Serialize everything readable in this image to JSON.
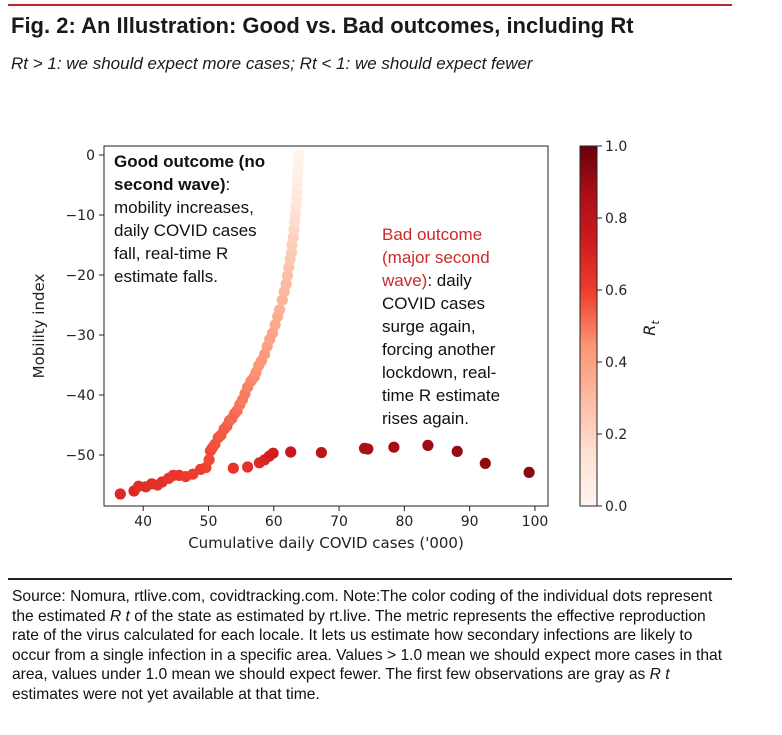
{
  "header": {
    "title": "Fig. 2: An Illustration: Good vs. Bad outcomes, including Rt",
    "subtitle": "Rt > 1: we should expect more cases; Rt < 1: we should expect fewer"
  },
  "chart_data": {
    "type": "scatter",
    "xlabel": "Cumulative daily COVID cases ('000)",
    "ylabel": "Mobility index",
    "xlim": [
      34,
      102
    ],
    "ylim": [
      -58.5,
      1.5
    ],
    "x_ticks": [
      40,
      50,
      60,
      70,
      80,
      90,
      100
    ],
    "y_ticks": [
      0,
      -10,
      -20,
      -30,
      -40,
      -50
    ],
    "grid": false,
    "colorbar": {
      "label": "R_t",
      "range": [
        0.0,
        1.0
      ],
      "ticks": [
        1.0,
        0.8,
        0.6,
        0.4,
        0.2,
        0.0
      ],
      "color_low": "#fff5f0",
      "color_high": "#67000d"
    },
    "series": [
      {
        "points": [
          {
            "x": 36.5,
            "y": -56.5,
            "c": 0.68
          },
          {
            "x": 38.6,
            "y": -56.0,
            "c": 0.68
          },
          {
            "x": 39.3,
            "y": -55.2,
            "c": 0.66
          },
          {
            "x": 40.4,
            "y": -55.3,
            "c": 0.66
          },
          {
            "x": 41.3,
            "y": -54.8,
            "c": 0.65
          },
          {
            "x": 42.2,
            "y": -55.0,
            "c": 0.64
          },
          {
            "x": 42.9,
            "y": -54.5,
            "c": 0.64
          },
          {
            "x": 43.9,
            "y": -53.9,
            "c": 0.63
          },
          {
            "x": 44.6,
            "y": -53.4,
            "c": 0.62
          },
          {
            "x": 45.5,
            "y": -53.4,
            "c": 0.62
          },
          {
            "x": 46.5,
            "y": -53.6,
            "c": 0.61
          },
          {
            "x": 47.6,
            "y": -53.2,
            "c": 0.6
          },
          {
            "x": 48.8,
            "y": -52.4,
            "c": 0.6
          },
          {
            "x": 49.6,
            "y": -52.1,
            "c": 0.59
          },
          {
            "x": 50.1,
            "y": -50.8,
            "c": 0.58
          },
          {
            "x": 50.3,
            "y": -49.3,
            "c": 0.58
          },
          {
            "x": 50.6,
            "y": -48.8,
            "c": 0.57
          },
          {
            "x": 51.0,
            "y": -48.2,
            "c": 0.56
          },
          {
            "x": 51.5,
            "y": -47.1,
            "c": 0.56
          },
          {
            "x": 51.9,
            "y": -46.7,
            "c": 0.55
          },
          {
            "x": 52.4,
            "y": -45.7,
            "c": 0.55
          },
          {
            "x": 52.8,
            "y": -45.2,
            "c": 0.54
          },
          {
            "x": 53.2,
            "y": -44.3,
            "c": 0.53
          },
          {
            "x": 53.6,
            "y": -43.9,
            "c": 0.52
          },
          {
            "x": 54.0,
            "y": -43.1,
            "c": 0.52
          },
          {
            "x": 54.4,
            "y": -42.6,
            "c": 0.51
          },
          {
            "x": 54.8,
            "y": -41.6,
            "c": 0.5
          },
          {
            "x": 55.2,
            "y": -40.8,
            "c": 0.49
          },
          {
            "x": 55.6,
            "y": -39.8,
            "c": 0.49
          },
          {
            "x": 56.0,
            "y": -38.7,
            "c": 0.48
          },
          {
            "x": 56.5,
            "y": -37.7,
            "c": 0.47
          },
          {
            "x": 57.0,
            "y": -37.0,
            "c": 0.46
          },
          {
            "x": 57.3,
            "y": -36.2,
            "c": 0.45
          },
          {
            "x": 57.7,
            "y": -35.1,
            "c": 0.44
          },
          {
            "x": 58.1,
            "y": -34.3,
            "c": 0.43
          },
          {
            "x": 58.6,
            "y": -33.2,
            "c": 0.42
          },
          {
            "x": 59.0,
            "y": -31.9,
            "c": 0.4
          },
          {
            "x": 59.4,
            "y": -30.7,
            "c": 0.39
          },
          {
            "x": 59.8,
            "y": -29.7,
            "c": 0.38
          },
          {
            "x": 60.2,
            "y": -28.3,
            "c": 0.37
          },
          {
            "x": 60.6,
            "y": -26.9,
            "c": 0.35
          },
          {
            "x": 60.9,
            "y": -25.8,
            "c": 0.34
          },
          {
            "x": 61.3,
            "y": -24.2,
            "c": 0.33
          },
          {
            "x": 61.6,
            "y": -22.8,
            "c": 0.31
          },
          {
            "x": 61.9,
            "y": -21.5,
            "c": 0.3
          },
          {
            "x": 62.1,
            "y": -20.1,
            "c": 0.28
          },
          {
            "x": 62.3,
            "y": -18.7,
            "c": 0.27
          },
          {
            "x": 62.5,
            "y": -17.4,
            "c": 0.25
          },
          {
            "x": 62.7,
            "y": -16.3,
            "c": 0.24
          },
          {
            "x": 62.8,
            "y": -15.0,
            "c": 0.22
          },
          {
            "x": 63.0,
            "y": -13.7,
            "c": 0.21
          },
          {
            "x": 63.1,
            "y": -12.4,
            "c": 0.19
          },
          {
            "x": 63.2,
            "y": -11.1,
            "c": 0.17
          },
          {
            "x": 63.3,
            "y": -9.9,
            "c": 0.15
          },
          {
            "x": 63.4,
            "y": -8.6,
            "c": 0.13
          },
          {
            "x": 63.5,
            "y": -7.4,
            "c": 0.11
          },
          {
            "x": 63.55,
            "y": -6.1,
            "c": 0.09
          },
          {
            "x": 63.6,
            "y": -4.8,
            "c": 0.07
          },
          {
            "x": 63.65,
            "y": -3.5,
            "c": 0.05
          },
          {
            "x": 63.7,
            "y": -2.2,
            "c": 0.03
          },
          {
            "x": 63.75,
            "y": -1.0,
            "c": 0.02
          },
          {
            "x": 63.8,
            "y": 0.0,
            "c": 0.01
          }
        ]
      },
      {
        "points": [
          {
            "x": 53.8,
            "y": -52.2,
            "c": 0.63
          },
          {
            "x": 56.0,
            "y": -52.0,
            "c": 0.64
          },
          {
            "x": 57.8,
            "y": -51.3,
            "c": 0.67
          },
          {
            "x": 58.6,
            "y": -50.8,
            "c": 0.69
          },
          {
            "x": 59.3,
            "y": -50.2,
            "c": 0.71
          },
          {
            "x": 59.9,
            "y": -49.7,
            "c": 0.73
          },
          {
            "x": 62.6,
            "y": -49.5,
            "c": 0.76
          },
          {
            "x": 67.3,
            "y": -49.6,
            "c": 0.8
          },
          {
            "x": 73.9,
            "y": -48.9,
            "c": 0.86
          },
          {
            "x": 74.4,
            "y": -49.0,
            "c": 0.86
          },
          {
            "x": 78.4,
            "y": -48.7,
            "c": 0.88
          },
          {
            "x": 83.6,
            "y": -48.4,
            "c": 0.9
          },
          {
            "x": 88.1,
            "y": -49.4,
            "c": 0.91
          },
          {
            "x": 92.4,
            "y": -51.4,
            "c": 0.92
          },
          {
            "x": 99.1,
            "y": -52.9,
            "c": 0.93
          }
        ]
      }
    ],
    "annotations": {
      "good": {
        "lines": [
          {
            "text": "Good  outcome (no",
            "bold": true
          },
          {
            "text": "second wave)",
            "bold": true,
            "suffix": ":"
          },
          {
            "text": "mobility increases,"
          },
          {
            "text": "daily COVID cases"
          },
          {
            "text": "fall, real-time R"
          },
          {
            "text": "estimate falls."
          }
        ],
        "color": "#111111"
      },
      "bad": {
        "lines": [
          {
            "text": "Bad outcome",
            "color": "#cc2a2a"
          },
          {
            "text": "(major second",
            "color": "#cc2a2a"
          },
          {
            "text": "wave)",
            "color": "#cc2a2a",
            "suffix": ": daily"
          },
          {
            "text": "COVID cases"
          },
          {
            "text": "surge again,"
          },
          {
            "text": "forcing another"
          },
          {
            "text": "lockdown, real-"
          },
          {
            "text": "time R estimate"
          },
          {
            "text": "rises again."
          }
        ]
      }
    }
  },
  "footer": {
    "note_parts": [
      "Source: Nomura, rtlive.com, covidtracking.com. Note:The color coding of the individual dots represent the estimated ",
      "R t",
      " of the state as estimated by rt.live. The metric represents the effective reproduction rate of the virus calculated for each locale. It lets us estimate how secondary infections are likely to occur from a single infection in a specific area. Values > 1.0 mean we should expect more cases in that area, values under 1.0 mean we should expect fewer. The first few observations are gray as ",
      "R t",
      " estimates were not yet available at that time."
    ]
  },
  "colors": {
    "accent_rule": "#b22b2b",
    "annotation_red": "#cc2a2a"
  }
}
